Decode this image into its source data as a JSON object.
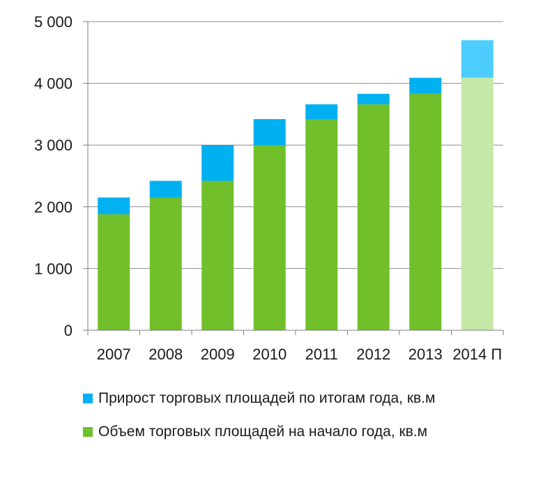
{
  "chart_data": {
    "type": "bar",
    "stacked": true,
    "title": "",
    "xlabel": "",
    "ylabel": "",
    "categories": [
      "2007",
      "2008",
      "2009",
      "2010",
      "2011",
      "2012",
      "2013",
      "2014 П"
    ],
    "series": [
      {
        "name": "Объем торговых площадей на начало года, кв.м",
        "values": [
          1880,
          2150,
          2420,
          3000,
          3420,
          3660,
          3830,
          4090
        ],
        "color": "#70bf2b",
        "last_color": "#c5e8a6"
      },
      {
        "name": "Прирост торговых площадей по итогам года, кв.м",
        "values": [
          270,
          270,
          580,
          420,
          240,
          170,
          260,
          610
        ],
        "color": "#00b0f0",
        "last_color": "#4dcdff"
      }
    ],
    "ylim": [
      0,
      5000
    ],
    "yticks": [
      0,
      1000,
      2000,
      3000,
      4000,
      5000
    ],
    "ytick_labels": [
      "0",
      "1 000",
      "2 000",
      "3 000",
      "4 000",
      "5 000"
    ],
    "grid": true,
    "legend_position": "bottom",
    "legend_order": [
      1,
      0
    ]
  }
}
